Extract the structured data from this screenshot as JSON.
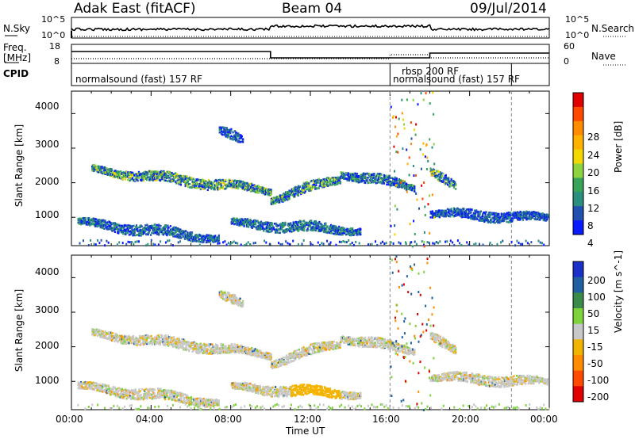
{
  "header": {
    "station": "Adak East (fitACF)",
    "beam": "Beam 04",
    "date": "09/Jul/2014"
  },
  "side_labels": {
    "nsky": "N.Sky",
    "nsearch": "N.Search",
    "freq": "Freq.",
    "mhz": "[MHz]",
    "nave": "Nave",
    "cpid": "CPID"
  },
  "noise_panel": {
    "left_ticks": [
      "10^5",
      "10^0"
    ],
    "right_ticks": [
      "10^5",
      "10^0"
    ]
  },
  "freq_panel": {
    "left_ticks": [
      "18",
      "8"
    ],
    "right_ticks": [
      "60",
      "0"
    ]
  },
  "cpid_labels": [
    {
      "text": "normalsound (fast) 157 RF",
      "start_hour": 0
    },
    {
      "text": "rbsp 200 RF",
      "start_hour": 16
    },
    {
      "text": "normalsound (fast) 157 RF",
      "start_hour": 18
    }
  ],
  "chart_data": [
    {
      "type": "heatmap",
      "variable": "Power",
      "ylabel": "Slant Range [km]",
      "yticks": [
        1000,
        2000,
        3000,
        4000
      ],
      "ylim": [
        180,
        4650
      ],
      "xlim_hours": [
        0,
        24
      ],
      "colorbar": {
        "label": "Power [dB]",
        "ticks": [
          "28",
          "24",
          "20",
          "16",
          "12",
          "8",
          "4"
        ],
        "colors": [
          "#e00000",
          "#ff4a00",
          "#ff8c00",
          "#ffb300",
          "#f2d700",
          "#8fd23f",
          "#37a45a",
          "#2b8f80",
          "#2050b0",
          "#0a1aff"
        ]
      },
      "scatter_bands": [
        {
          "start": 0.3,
          "end": 7.4,
          "r0": 880,
          "r1": 420,
          "intensity": 0.35
        },
        {
          "start": 1.0,
          "end": 10.0,
          "r0": 2400,
          "r1": 1800,
          "intensity": 0.6
        },
        {
          "start": 10.0,
          "end": 13.5,
          "r0": 1550,
          "r1": 2150,
          "intensity": 0.55
        },
        {
          "start": 8.0,
          "end": 14.5,
          "r0": 850,
          "r1": 650,
          "intensity": 0.4
        },
        {
          "start": 13.5,
          "end": 17.2,
          "r0": 2300,
          "r1": 1900,
          "intensity": 0.45
        },
        {
          "start": 18.0,
          "end": 19.3,
          "r0": 2400,
          "r1": 1850,
          "intensity": 0.55
        },
        {
          "start": 18.0,
          "end": 23.9,
          "r0": 1150,
          "r1": 1000,
          "intensity": 0.3
        },
        {
          "start": 7.4,
          "end": 8.6,
          "r0": 3550,
          "r1": 3200,
          "intensity": 0.3
        }
      ]
    },
    {
      "type": "heatmap",
      "variable": "Velocity",
      "ylabel": "Slant Range [km]",
      "xlabel": "Time UT",
      "yticks": [
        1000,
        2000,
        3000,
        4000
      ],
      "ylim": [
        180,
        4650
      ],
      "xlim_hours": [
        0,
        24
      ],
      "xticks": [
        "00:00",
        "04:00",
        "08:00",
        "12:00",
        "16:00",
        "20:00",
        "00:00"
      ],
      "colorbar": {
        "label": "Velocity [m s^-1]",
        "ticks": [
          "200",
          "100",
          "50",
          "15",
          "-15",
          "-50",
          "-100",
          "-200"
        ],
        "colors": [
          "#1a30c8",
          "#2060a0",
          "#3c8a4a",
          "#7ed23c",
          "#c8c8c8",
          "#f0b400",
          "#ff8c00",
          "#ff4a00",
          "#e00000"
        ]
      },
      "scatter_bands": [
        {
          "start": 0.3,
          "end": 7.4,
          "r0": 880,
          "r1": 420,
          "intensity": 0.35
        },
        {
          "start": 1.0,
          "end": 10.0,
          "r0": 2400,
          "r1": 1800,
          "intensity": 0.6
        },
        {
          "start": 10.0,
          "end": 13.5,
          "r0": 1550,
          "r1": 2150,
          "intensity": 0.55
        },
        {
          "start": 8.0,
          "end": 14.5,
          "r0": 850,
          "r1": 650,
          "intensity": 0.4
        },
        {
          "start": 13.5,
          "end": 17.2,
          "r0": 2300,
          "r1": 1900,
          "intensity": 0.45
        },
        {
          "start": 18.0,
          "end": 19.3,
          "r0": 2400,
          "r1": 1850,
          "intensity": 0.55
        },
        {
          "start": 18.0,
          "end": 23.9,
          "r0": 1150,
          "r1": 1000,
          "intensity": 0.3
        },
        {
          "start": 7.4,
          "end": 8.6,
          "r0": 3550,
          "r1": 3200,
          "intensity": 0.3
        }
      ]
    }
  ]
}
